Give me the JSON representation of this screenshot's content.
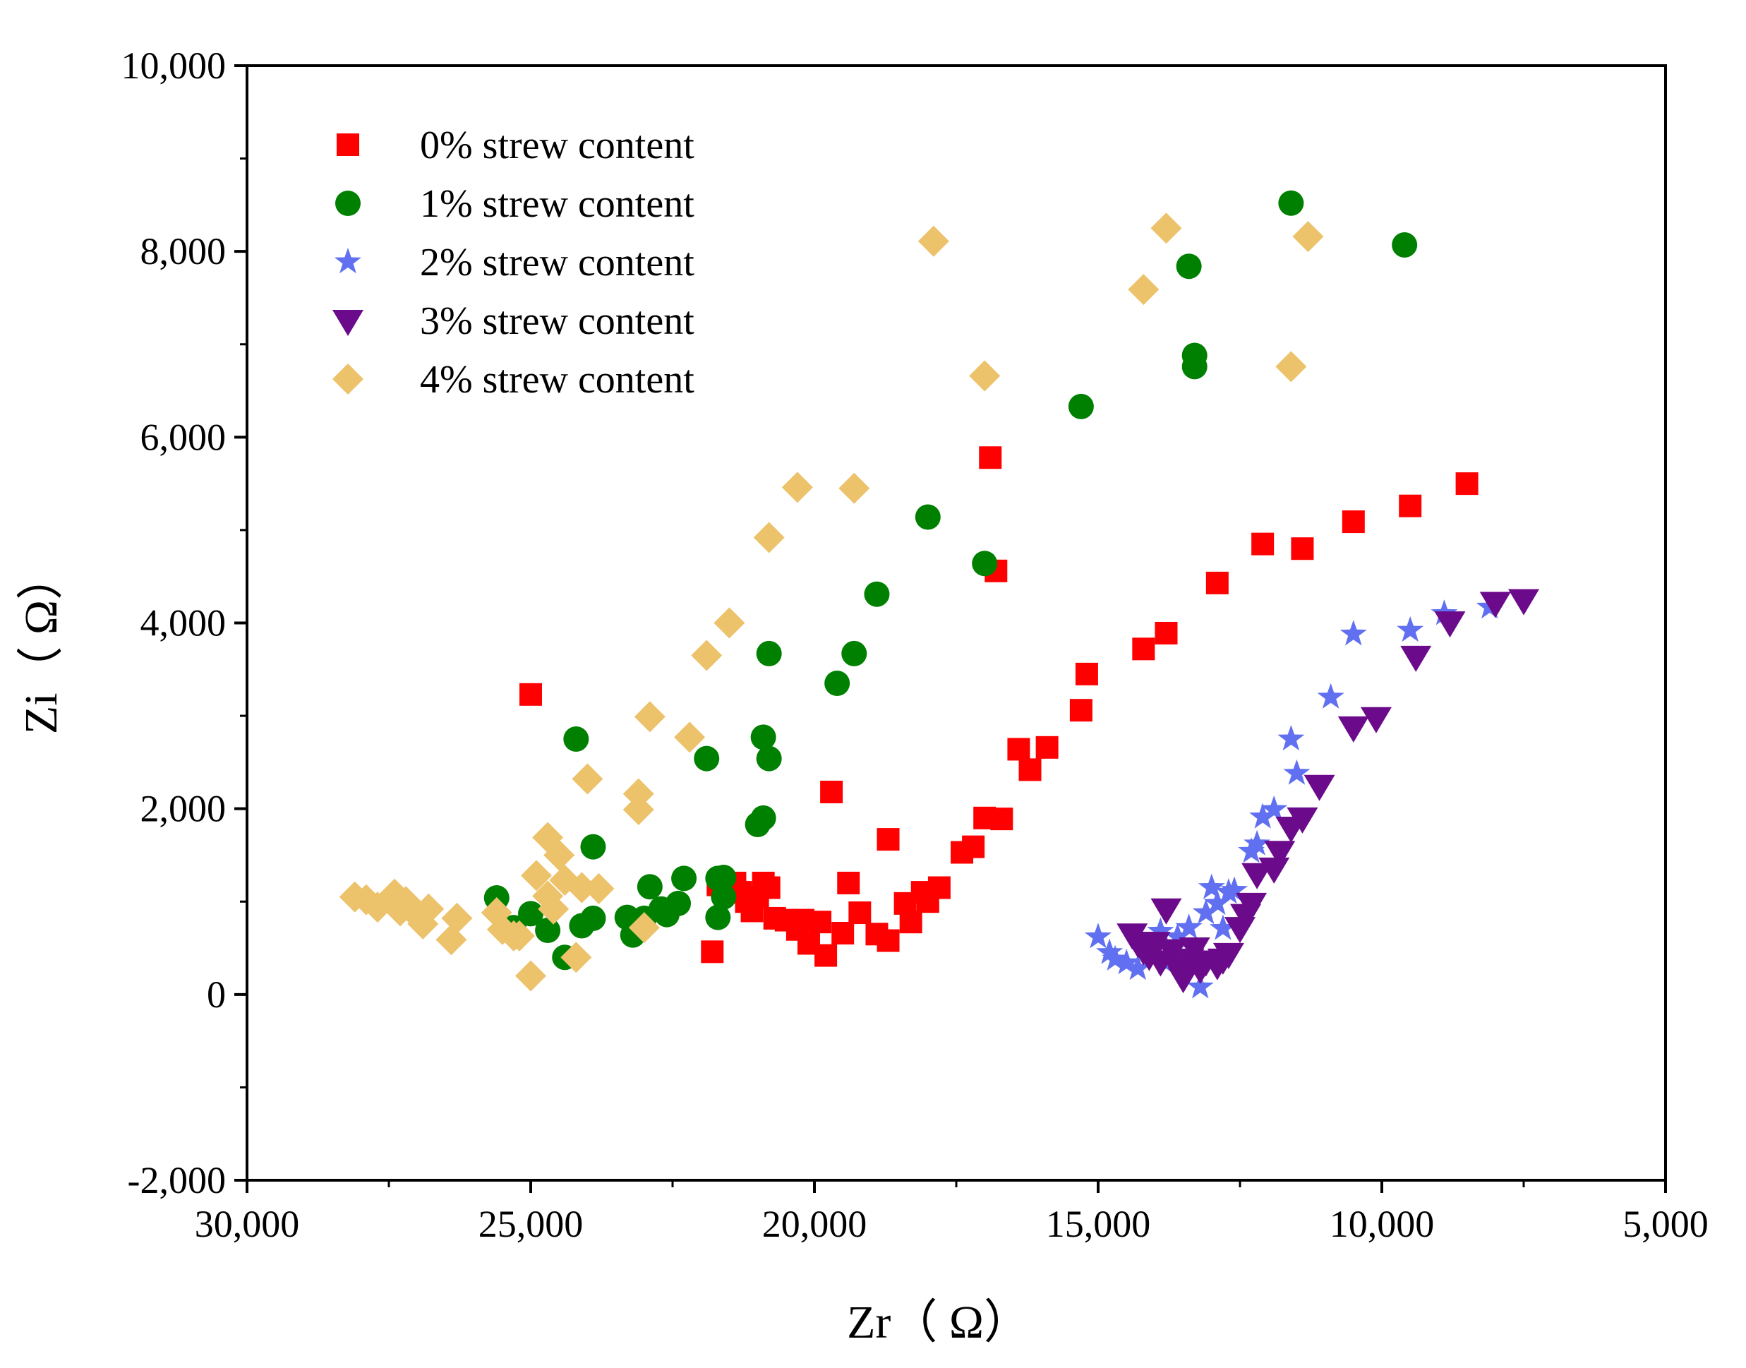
{
  "chart_data": {
    "type": "scatter",
    "title": "",
    "xlabel": "Zr（  Ω）",
    "ylabel": "Zi（  Ω）",
    "xlim": [
      30000,
      5000
    ],
    "ylim": [
      -2000,
      10000
    ],
    "x_reversed": true,
    "grid": false,
    "legend_position": "top-left",
    "x_ticks": [
      30000,
      25000,
      20000,
      15000,
      10000,
      5000
    ],
    "x_tick_labels": [
      "30,000",
      "25,000",
      "20,000",
      "15,000",
      "10,000",
      "5,000"
    ],
    "y_ticks": [
      -2000,
      0,
      2000,
      4000,
      6000,
      8000,
      10000
    ],
    "y_tick_labels": [
      "-2,000",
      "0",
      "2,000",
      "4,000",
      "6,000",
      "8,000",
      "10,000"
    ],
    "series": [
      {
        "name": "0% strew content",
        "marker": "square",
        "color": "#ff0000",
        "points": [
          [
            25000,
            3230
          ],
          [
            21800,
            460
          ],
          [
            21700,
            1180
          ],
          [
            21400,
            1200
          ],
          [
            21300,
            1100
          ],
          [
            21200,
            1000
          ],
          [
            21100,
            900
          ],
          [
            21000,
            1050
          ],
          [
            20900,
            1200
          ],
          [
            20800,
            1150
          ],
          [
            20700,
            820
          ],
          [
            20500,
            800
          ],
          [
            20300,
            700
          ],
          [
            20200,
            800
          ],
          [
            20100,
            550
          ],
          [
            19900,
            780
          ],
          [
            19800,
            420
          ],
          [
            19700,
            2180
          ],
          [
            19500,
            660
          ],
          [
            19400,
            1200
          ],
          [
            19200,
            880
          ],
          [
            18900,
            650
          ],
          [
            18700,
            1670
          ],
          [
            18700,
            580
          ],
          [
            18400,
            980
          ],
          [
            18300,
            780
          ],
          [
            18100,
            1100
          ],
          [
            18000,
            1000
          ],
          [
            17800,
            1150
          ],
          [
            17400,
            1530
          ],
          [
            17200,
            1590
          ],
          [
            17000,
            1900
          ],
          [
            16900,
            5780
          ],
          [
            16800,
            4560
          ],
          [
            16700,
            1890
          ],
          [
            16400,
            2640
          ],
          [
            16200,
            2420
          ],
          [
            15900,
            2660
          ],
          [
            15300,
            3060
          ],
          [
            15200,
            3450
          ],
          [
            14200,
            3720
          ],
          [
            13800,
            3890
          ],
          [
            12900,
            4430
          ],
          [
            12100,
            4850
          ],
          [
            11400,
            4800
          ],
          [
            10500,
            5090
          ],
          [
            9500,
            5260
          ],
          [
            8500,
            5500
          ]
        ]
      },
      {
        "name": "1% strew content",
        "marker": "circle",
        "color": "#008000",
        "points": [
          [
            25600,
            1040
          ],
          [
            25300,
            720
          ],
          [
            25000,
            870
          ],
          [
            24700,
            690
          ],
          [
            24400,
            400
          ],
          [
            24200,
            2750
          ],
          [
            24100,
            740
          ],
          [
            23900,
            820
          ],
          [
            23900,
            1590
          ],
          [
            23300,
            830
          ],
          [
            23200,
            640
          ],
          [
            23000,
            820
          ],
          [
            22900,
            1160
          ],
          [
            22700,
            920
          ],
          [
            22600,
            860
          ],
          [
            22400,
            980
          ],
          [
            22300,
            1250
          ],
          [
            21900,
            2540
          ],
          [
            21700,
            830
          ],
          [
            21700,
            1250
          ],
          [
            21600,
            1050
          ],
          [
            21600,
            1260
          ],
          [
            21000,
            1830
          ],
          [
            20900,
            2770
          ],
          [
            20900,
            1900
          ],
          [
            20800,
            2540
          ],
          [
            20800,
            3670
          ],
          [
            19600,
            3350
          ],
          [
            19300,
            3670
          ],
          [
            18900,
            4310
          ],
          [
            18000,
            5140
          ],
          [
            17000,
            4640
          ],
          [
            15300,
            6330
          ],
          [
            13400,
            7840
          ],
          [
            13300,
            6880
          ],
          [
            13300,
            6760
          ],
          [
            11600,
            8520
          ],
          [
            9600,
            8070
          ]
        ]
      },
      {
        "name": "2% strew content",
        "marker": "star",
        "color": "#6070f0",
        "points": [
          [
            15000,
            620
          ],
          [
            14800,
            450
          ],
          [
            14700,
            380
          ],
          [
            14500,
            340
          ],
          [
            14300,
            280
          ],
          [
            14100,
            480
          ],
          [
            13900,
            680
          ],
          [
            13800,
            340
          ],
          [
            13600,
            620
          ],
          [
            13400,
            720
          ],
          [
            13300,
            420
          ],
          [
            13200,
            80
          ],
          [
            13100,
            880
          ],
          [
            13000,
            1150
          ],
          [
            12900,
            980
          ],
          [
            12800,
            710
          ],
          [
            12700,
            1100
          ],
          [
            12600,
            1120
          ],
          [
            12300,
            1540
          ],
          [
            12200,
            1620
          ],
          [
            12100,
            1910
          ],
          [
            11900,
            1990
          ],
          [
            11600,
            2750
          ],
          [
            11500,
            2380
          ],
          [
            10900,
            3200
          ],
          [
            10500,
            3880
          ],
          [
            9500,
            3920
          ],
          [
            8900,
            4100
          ],
          [
            8100,
            4170
          ]
        ]
      },
      {
        "name": "3% strew content",
        "marker": "triangle-down",
        "color": "#6b0a8a",
        "points": [
          [
            14400,
            650
          ],
          [
            14300,
            560
          ],
          [
            14200,
            480
          ],
          [
            14100,
            420
          ],
          [
            14000,
            560
          ],
          [
            13900,
            360
          ],
          [
            13800,
            920
          ],
          [
            13700,
            480
          ],
          [
            13600,
            300
          ],
          [
            13500,
            180
          ],
          [
            13400,
            380
          ],
          [
            13300,
            500
          ],
          [
            13200,
            280
          ],
          [
            13100,
            360
          ],
          [
            12900,
            320
          ],
          [
            12800,
            380
          ],
          [
            12700,
            440
          ],
          [
            12500,
            720
          ],
          [
            12400,
            860
          ],
          [
            12300,
            980
          ],
          [
            12200,
            1300
          ],
          [
            11900,
            1360
          ],
          [
            11800,
            1540
          ],
          [
            11600,
            1800
          ],
          [
            11400,
            1900
          ],
          [
            11100,
            2250
          ],
          [
            10500,
            2880
          ],
          [
            10100,
            2980
          ],
          [
            9400,
            3640
          ],
          [
            8800,
            4010
          ],
          [
            8000,
            4220
          ],
          [
            7500,
            4250
          ]
        ]
      },
      {
        "name": "4% strew content",
        "marker": "diamond",
        "color": "#ecc26b",
        "points": [
          [
            28100,
            1050
          ],
          [
            27900,
            1020
          ],
          [
            27700,
            940
          ],
          [
            27400,
            1080
          ],
          [
            27300,
            900
          ],
          [
            27200,
            1000
          ],
          [
            27000,
            850
          ],
          [
            26900,
            760
          ],
          [
            26800,
            920
          ],
          [
            26400,
            590
          ],
          [
            26300,
            820
          ],
          [
            25600,
            880
          ],
          [
            25500,
            700
          ],
          [
            25300,
            630
          ],
          [
            25200,
            630
          ],
          [
            25000,
            200
          ],
          [
            24900,
            1280
          ],
          [
            24700,
            1060
          ],
          [
            24700,
            1690
          ],
          [
            24600,
            920
          ],
          [
            24500,
            1500
          ],
          [
            24400,
            1230
          ],
          [
            24200,
            400
          ],
          [
            24100,
            1150
          ],
          [
            24000,
            2320
          ],
          [
            23800,
            1140
          ],
          [
            23100,
            2160
          ],
          [
            23100,
            1990
          ],
          [
            23000,
            720
          ],
          [
            22900,
            2990
          ],
          [
            22200,
            2770
          ],
          [
            21900,
            3650
          ],
          [
            21500,
            4000
          ],
          [
            20800,
            4920
          ],
          [
            20300,
            5460
          ],
          [
            19300,
            5450
          ],
          [
            17900,
            8110
          ],
          [
            17000,
            6660
          ],
          [
            14200,
            7590
          ],
          [
            13800,
            8250
          ],
          [
            11600,
            6760
          ],
          [
            11300,
            8160
          ]
        ]
      }
    ]
  }
}
